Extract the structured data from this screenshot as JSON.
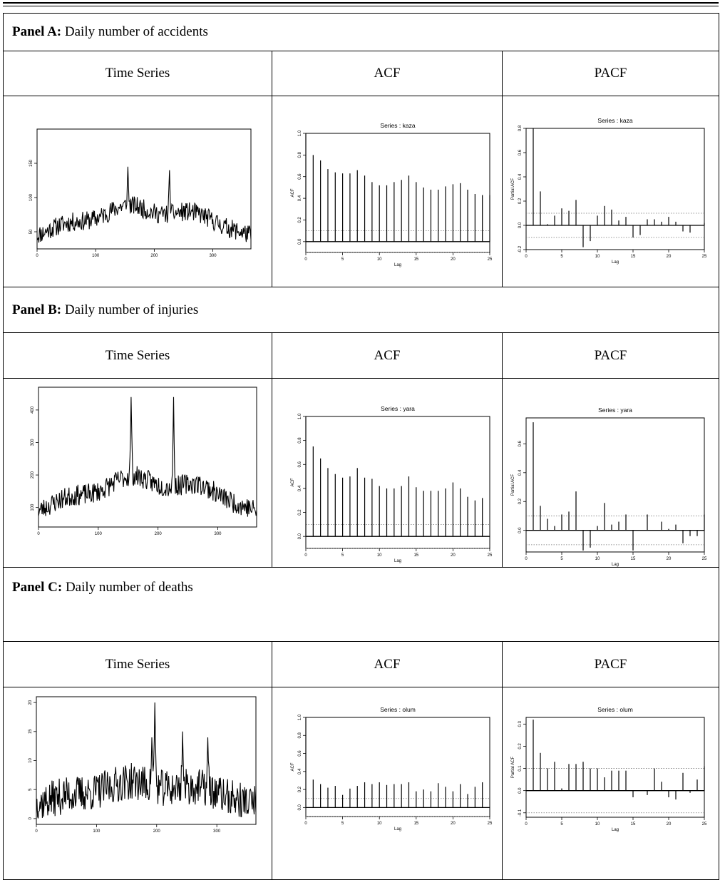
{
  "column_headers": [
    "Time Series",
    "ACF",
    "PACF"
  ],
  "panels": [
    {
      "prefix": "Panel A:",
      "title": "Daily number of accidents"
    },
    {
      "prefix": "Panel B:",
      "title": "Daily number of injuries"
    },
    {
      "prefix": "Panel C:",
      "title": "Daily number of deaths"
    }
  ],
  "chart_data": [
    {
      "type": "line",
      "panel": "A",
      "title": "",
      "xlabel": "",
      "ylabel": "",
      "xlim": [
        0,
        365
      ],
      "ylim": [
        25,
        200
      ],
      "xticks": [
        0,
        100,
        200,
        300
      ],
      "yticks": [
        50,
        100,
        150
      ],
      "shape": {
        "base": 45,
        "amp": 45,
        "noise": 14,
        "seed": 11,
        "min": 30,
        "peaks": [
          [
            155,
            145
          ],
          [
            226,
            140
          ]
        ]
      }
    },
    {
      "type": "bar",
      "panel": "A",
      "title": "Series : kaza",
      "xlabel": "Lag",
      "ylabel": "ACF",
      "xlim": [
        0,
        25
      ],
      "ylim": [
        -0.1,
        1.0
      ],
      "xticks": [
        0,
        5,
        10,
        15,
        20,
        25
      ],
      "yticks": [
        0.0,
        0.2,
        0.4,
        0.6,
        0.8,
        1.0
      ],
      "conf": 0.1,
      "values": [
        1.0,
        0.8,
        0.75,
        0.67,
        0.64,
        0.63,
        0.63,
        0.66,
        0.61,
        0.55,
        0.52,
        0.52,
        0.55,
        0.57,
        0.61,
        0.55,
        0.5,
        0.48,
        0.48,
        0.51,
        0.53,
        0.54,
        0.48,
        0.44,
        0.43,
        0.43
      ]
    },
    {
      "type": "bar",
      "panel": "A",
      "title": "Series : kaza",
      "xlabel": "Lag",
      "ylabel": "Partial ACF",
      "xlim": [
        0,
        25
      ],
      "ylim": [
        -0.2,
        0.8
      ],
      "xticks": [
        0,
        5,
        10,
        15,
        20,
        25
      ],
      "yticks": [
        -0.2,
        0.0,
        0.2,
        0.4,
        0.6,
        0.8
      ],
      "conf": 0.1,
      "lags": [
        1,
        2,
        3,
        4,
        5,
        6,
        7,
        8,
        9,
        10,
        11,
        12,
        13,
        14,
        15,
        16,
        17,
        18,
        19,
        20,
        21,
        22,
        23,
        24,
        25
      ],
      "values": [
        0.8,
        0.28,
        0.01,
        0.08,
        0.14,
        0.12,
        0.21,
        -0.18,
        -0.13,
        0.08,
        0.16,
        0.13,
        0.04,
        0.07,
        -0.1,
        -0.08,
        0.05,
        0.05,
        0.03,
        0.07,
        0.03,
        -0.05,
        -0.06,
        0.0,
        0.02
      ]
    },
    {
      "type": "line",
      "panel": "B",
      "title": "",
      "xlabel": "",
      "ylabel": "",
      "xlim": [
        0,
        365
      ],
      "ylim": [
        40,
        470
      ],
      "xticks": [
        0,
        100,
        200,
        300
      ],
      "yticks": [
        100,
        200,
        300,
        400
      ],
      "shape": {
        "base": 90,
        "amp": 110,
        "noise": 32,
        "seed": 23,
        "min": 55,
        "peaks": [
          [
            155,
            440
          ],
          [
            226,
            440
          ]
        ]
      }
    },
    {
      "type": "bar",
      "panel": "B",
      "title": "Series : yara",
      "xlabel": "Lag",
      "ylabel": "ACF",
      "xlim": [
        0,
        25
      ],
      "ylim": [
        -0.1,
        1.0
      ],
      "xticks": [
        0,
        5,
        10,
        15,
        20,
        25
      ],
      "yticks": [
        0.0,
        0.2,
        0.4,
        0.6,
        0.8,
        1.0
      ],
      "conf": 0.1,
      "values": [
        1.0,
        0.75,
        0.65,
        0.57,
        0.52,
        0.49,
        0.5,
        0.57,
        0.49,
        0.48,
        0.42,
        0.4,
        0.4,
        0.42,
        0.5,
        0.41,
        0.38,
        0.38,
        0.38,
        0.4,
        0.45,
        0.4,
        0.33,
        0.3,
        0.32
      ]
    },
    {
      "type": "bar",
      "panel": "B",
      "title": "Series : yara",
      "xlabel": "Lag",
      "ylabel": "Partial ACF",
      "xlim": [
        0,
        25
      ],
      "ylim": [
        -0.15,
        0.78
      ],
      "xticks": [
        0,
        5,
        10,
        15,
        20,
        25
      ],
      "yticks": [
        0.0,
        0.2,
        0.4,
        0.6
      ],
      "conf": 0.1,
      "lags": [
        1,
        2,
        3,
        4,
        5,
        6,
        7,
        8,
        9,
        10,
        11,
        12,
        13,
        14,
        15,
        16,
        17,
        18,
        19,
        20,
        21,
        22,
        23,
        24,
        25
      ],
      "values": [
        0.75,
        0.17,
        0.08,
        0.03,
        0.11,
        0.13,
        0.27,
        -0.14,
        -0.12,
        0.03,
        0.19,
        0.04,
        0.06,
        0.11,
        -0.14,
        0.0,
        0.11,
        0.0,
        0.06,
        0.01,
        0.04,
        -0.09,
        -0.04,
        -0.04,
        0.11
      ]
    },
    {
      "type": "line",
      "panel": "C",
      "title": "",
      "xlabel": "",
      "ylabel": "",
      "xlim": [
        0,
        365
      ],
      "ylim": [
        -1,
        21
      ],
      "xticks": [
        0,
        100,
        200,
        300
      ],
      "yticks": [
        0,
        5,
        10,
        15,
        20
      ],
      "shape": {
        "base": 2.5,
        "amp": 4,
        "noise": 3.2,
        "seed": 37,
        "min": 0,
        "peaks": [
          [
            197,
            20
          ],
          [
            192,
            14
          ],
          [
            243,
            15
          ],
          [
            285,
            14
          ]
        ]
      }
    },
    {
      "type": "bar",
      "panel": "C",
      "title": "Series : olum",
      "xlabel": "Lag",
      "ylabel": "ACF",
      "xlim": [
        0,
        25
      ],
      "ylim": [
        -0.1,
        1.0
      ],
      "xticks": [
        0,
        5,
        10,
        15,
        20,
        25
      ],
      "yticks": [
        0.0,
        0.2,
        0.4,
        0.6,
        0.8,
        1.0
      ],
      "conf": 0.1,
      "values": [
        1.0,
        0.31,
        0.26,
        0.22,
        0.24,
        0.14,
        0.21,
        0.24,
        0.28,
        0.26,
        0.28,
        0.25,
        0.26,
        0.26,
        0.28,
        0.18,
        0.2,
        0.18,
        0.27,
        0.23,
        0.18,
        0.26,
        0.15,
        0.23,
        0.28
      ]
    },
    {
      "type": "bar",
      "panel": "C",
      "title": "Series : olum",
      "xlabel": "Lag",
      "ylabel": "Partial ACF",
      "xlim": [
        0,
        25
      ],
      "ylim": [
        -0.12,
        0.33
      ],
      "xticks": [
        0,
        5,
        10,
        15,
        20,
        25
      ],
      "yticks": [
        -0.1,
        0.0,
        0.1,
        0.2,
        0.3
      ],
      "conf": 0.1,
      "lags": [
        1,
        2,
        3,
        4,
        5,
        6,
        7,
        8,
        9,
        10,
        11,
        12,
        13,
        14,
        15,
        16,
        17,
        18,
        19,
        20,
        21,
        22,
        23,
        24,
        25
      ],
      "values": [
        0.32,
        0.17,
        0.1,
        0.13,
        0.01,
        0.12,
        0.12,
        0.13,
        0.1,
        0.1,
        0.06,
        0.09,
        0.09,
        0.09,
        -0.03,
        0.0,
        -0.02,
        0.1,
        0.04,
        -0.03,
        -0.04,
        0.08,
        -0.01,
        0.05,
        0.11
      ]
    }
  ]
}
